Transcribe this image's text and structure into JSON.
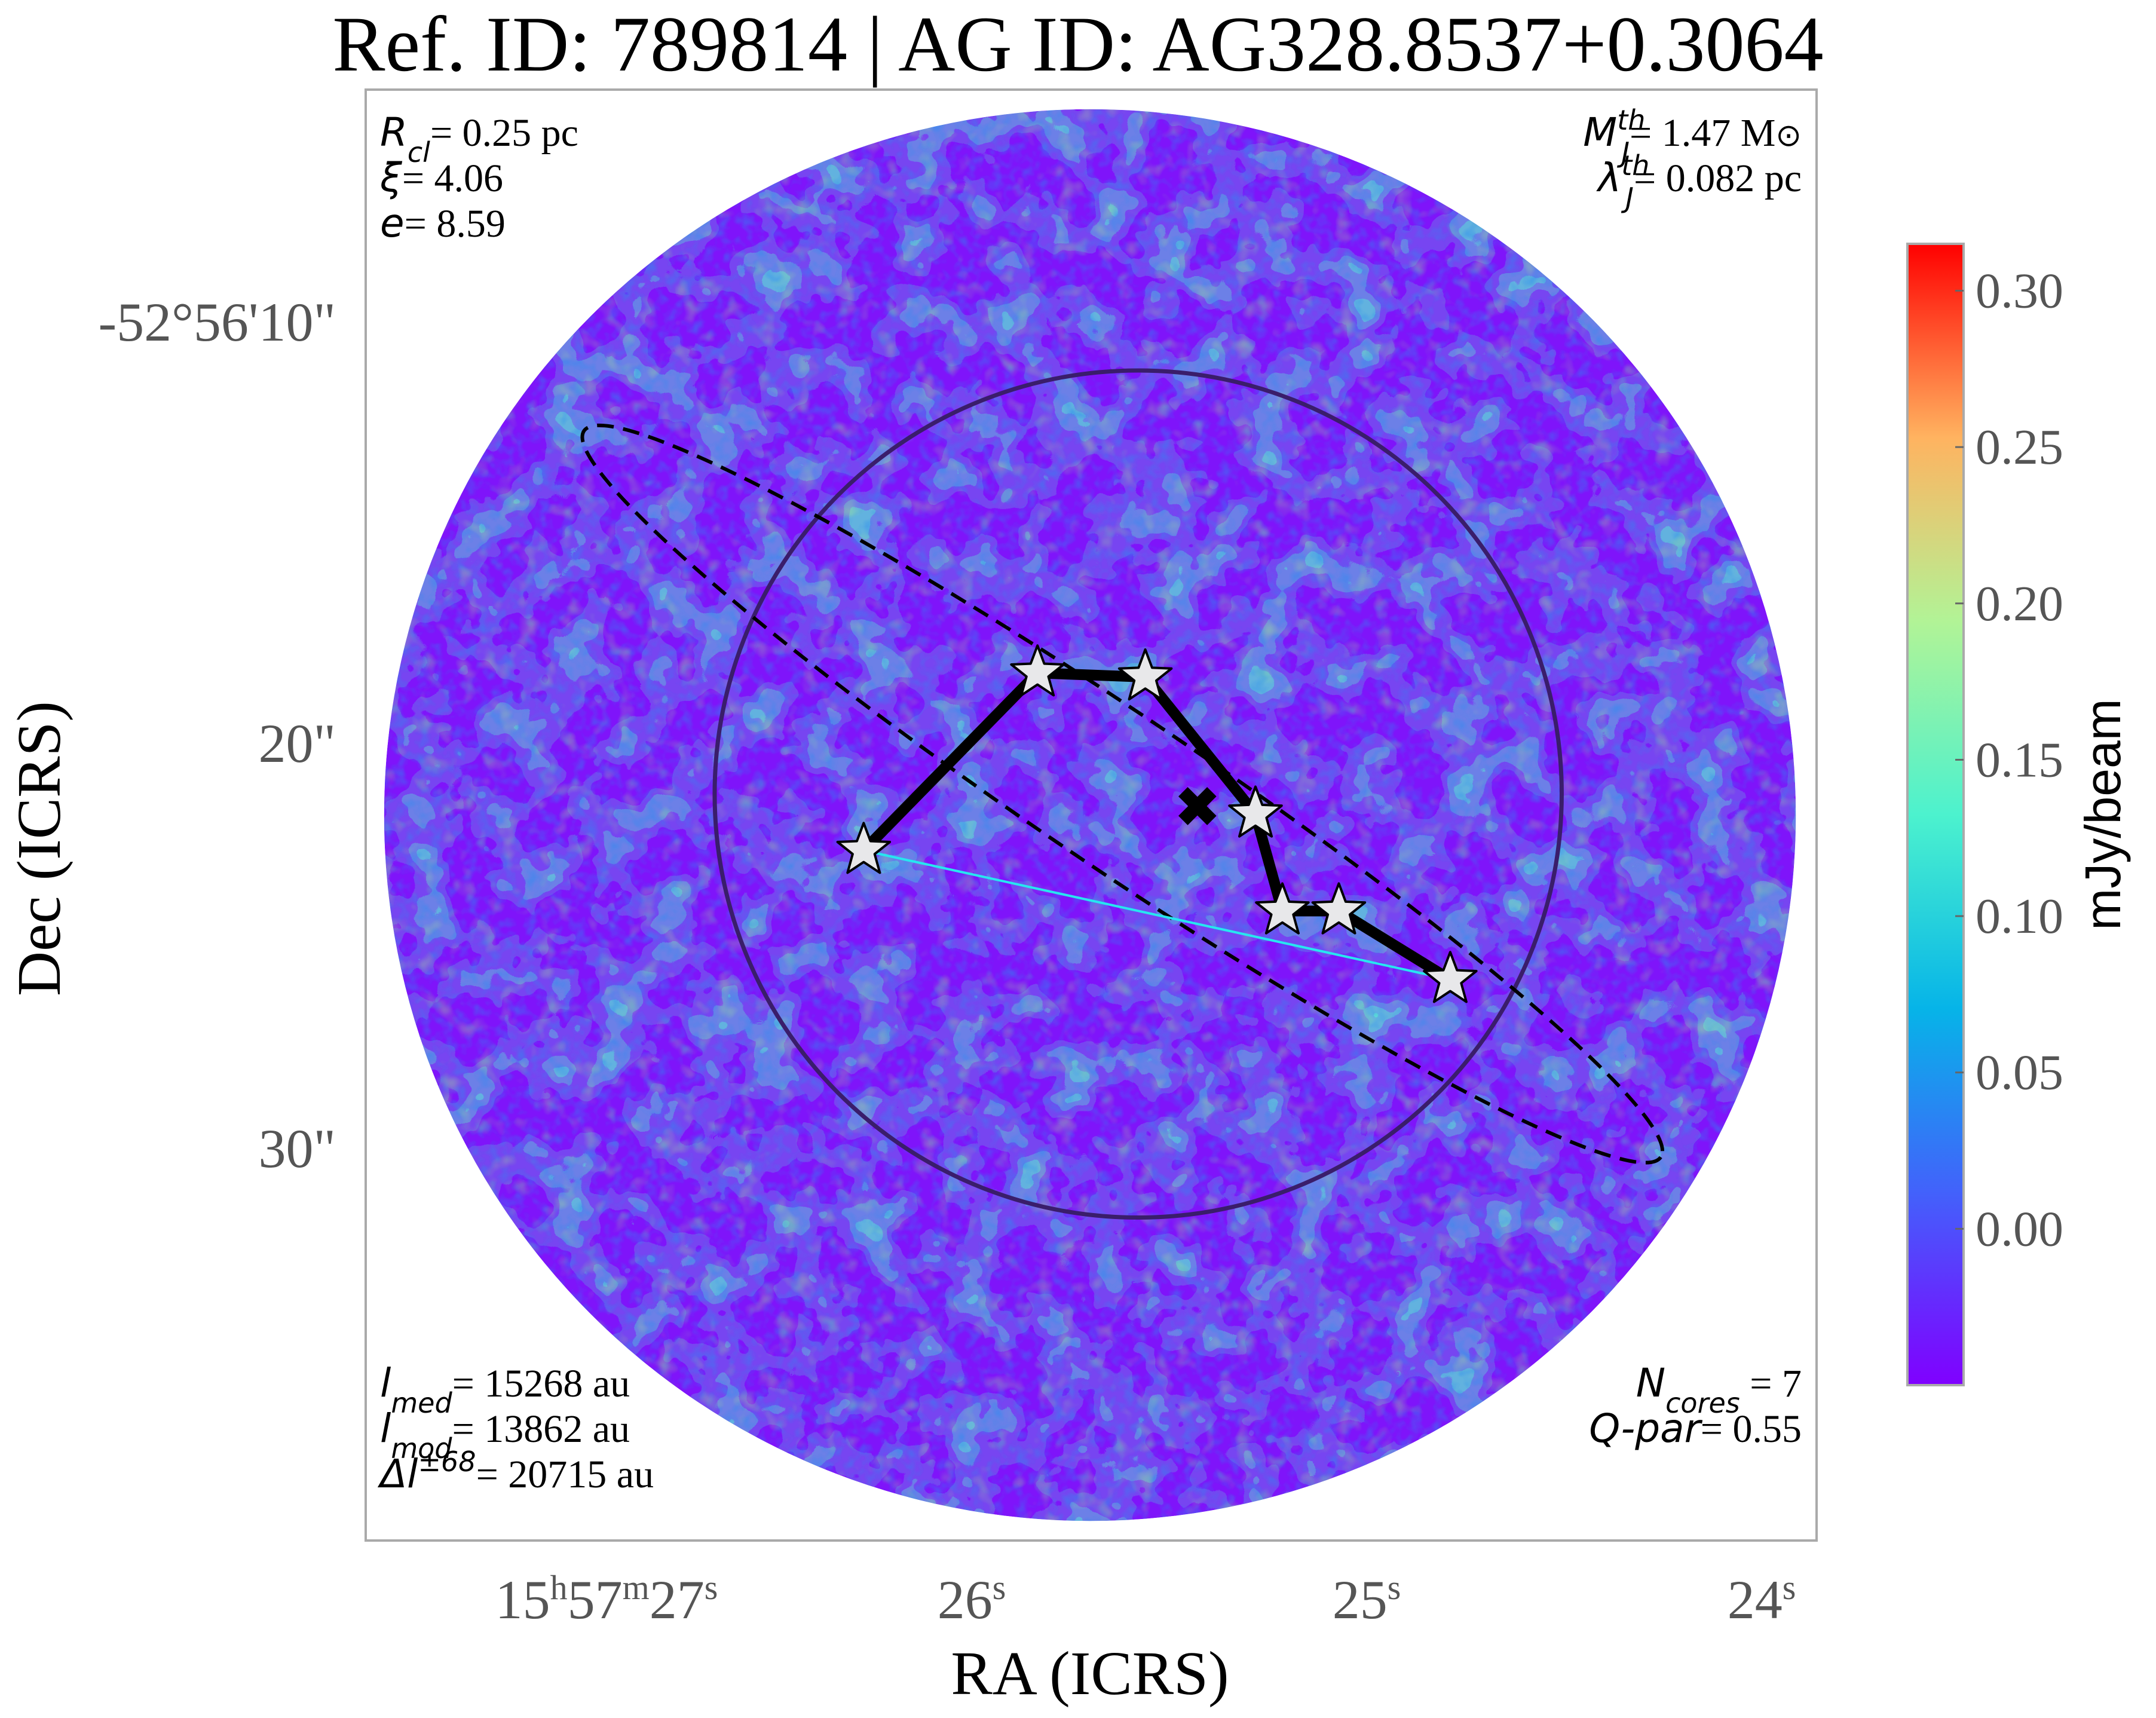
{
  "chart_data": {
    "type": "heatmap",
    "title": "Ref. ID: 789814 | AG ID: AG328.8537+0.3064",
    "xlabel": "RA (ICRS)",
    "ylabel": "Dec (ICRS)",
    "x_ticks": [
      {
        "h": "15",
        "hu": "h",
        "m": "57",
        "mu": "m",
        "s": "27",
        "su": "s"
      },
      {
        "s": "26",
        "su": "s"
      },
      {
        "s": "25",
        "su": "s"
      },
      {
        "s": "24",
        "su": "s"
      }
    ],
    "y_ticks": [
      "-52°56'10\"",
      "20\"",
      "30\""
    ],
    "colorbar": {
      "label": "mJy/beam",
      "ticks": [
        "0.30",
        "0.25",
        "0.20",
        "0.15",
        "0.10",
        "0.05",
        "0.00"
      ],
      "vmin": -0.05,
      "vmax": 0.315,
      "colormap": "rainbow"
    },
    "annotations": {
      "top_left": [
        {
          "sym": "R",
          "sub": "cl",
          "sup": "",
          "value": "= 0.25 pc"
        },
        {
          "sym": "ξ",
          "sub": "",
          "sup": "",
          "value": "= 4.06"
        },
        {
          "sym": "e",
          "sub": "",
          "sup": "",
          "value": "= 8.59"
        }
      ],
      "top_right": [
        {
          "sym": "M",
          "sub": "J",
          "sup": "th",
          "value": "= 1.47 M",
          "unit_symbol": "⊙"
        },
        {
          "sym": "λ",
          "sub": "J",
          "sup": "th",
          "value": "= 0.082 pc"
        }
      ],
      "bottom_left": [
        {
          "sym": "l",
          "sub": "med",
          "sup": "",
          "value": "= 15268 au"
        },
        {
          "sym": "l",
          "sub": "mod",
          "sup": "",
          "value": "= 13862 au"
        },
        {
          "sym": "Δl",
          "sub": "",
          "sup": "±68",
          "value": "= 20715 au"
        }
      ],
      "bottom_right": [
        {
          "sym": "N",
          "sub": "cores",
          "sup": "",
          "value": " = 7"
        },
        {
          "sym": "Q-par",
          "sub": "",
          "sup": "",
          "value": "= 0.55"
        }
      ]
    },
    "cores_ra_s": [
      26.135,
      25.695,
      25.422,
      25.143,
      25.075,
      24.932,
      24.65
    ],
    "cores_dec_arcsec": [
      22.7,
      18.3,
      18.4,
      21.8,
      24.2,
      24.2,
      25.9
    ],
    "mst_edges": [
      [
        0,
        1
      ],
      [
        1,
        2
      ],
      [
        2,
        3
      ],
      [
        3,
        4
      ],
      [
        4,
        5
      ],
      [
        5,
        6
      ]
    ],
    "centroid": {
      "ra_s": 25.29,
      "dec_arcsec": 21.6
    },
    "ellipse": {
      "ra_s": 25.48,
      "dec_arcsec": 21.3,
      "a_arcsec": 16.1,
      "b_arcsec": 1.9,
      "pa_deg": 34
    },
    "clump_circle": {
      "ra_s": 25.44,
      "dec_arcsec": 21.3,
      "r_arcsec": 10.5
    },
    "field_circle_r_arcsec": 17.5,
    "colors": {
      "circle": "#3a1d6b",
      "cores_fill": "#e8e8ea",
      "mst": "#000000",
      "ellipse": "#000000",
      "background": "#ffffff"
    }
  }
}
